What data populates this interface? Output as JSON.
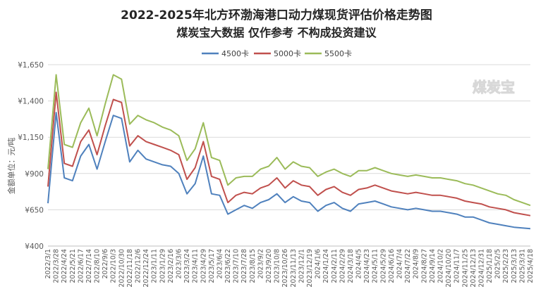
{
  "chart_data": {
    "type": "line",
    "title": "2022-2025年北方环渤海港口动力煤现货评估价格走势图",
    "subtitle": "煤炭宝大数据 仅作参考 不构成投资建议",
    "ylabel": "金额单位：元/吨",
    "ylim": [
      400,
      1650
    ],
    "yticks": [
      "¥400",
      "¥650",
      "¥900",
      "¥1,150",
      "¥1,400",
      "¥1,650"
    ],
    "ytick_values": [
      400,
      650,
      900,
      1150,
      1400,
      1650
    ],
    "grid": true,
    "legend_position": "top",
    "watermark": "煤炭宝",
    "x": [
      "2022/3/1",
      "2022/3/28",
      "2022/4/24",
      "2022/5/21",
      "2022/6/17",
      "2022/7/14",
      "2022/8/10",
      "2022/9/6",
      "2022/10/3",
      "2022/10/30",
      "2022/11/18",
      "2022/12/6",
      "2022/12/24",
      "2023/1/11",
      "2023/1/29",
      "2023/2/16",
      "2023/3/6",
      "2023/3/24",
      "2023/4/11",
      "2023/4/29",
      "2023/5/17",
      "2023/6/4",
      "2023/6/22",
      "2023/7/10",
      "2023/7/28",
      "2023/8/15",
      "2023/9/2",
      "2023/9/20",
      "2023/10/8",
      "2023/10/26",
      "2023/11/13",
      "2023/12/1",
      "2023/12/19",
      "2024/1/6",
      "2024/1/24",
      "2024/2/11",
      "2024/2/29",
      "2024/3/18",
      "2024/4/5",
      "2024/4/23",
      "2024/5/11",
      "2024/5/29",
      "2024/6/16",
      "2024/7/4",
      "2024/7/22",
      "2024/8/9",
      "2024/8/27",
      "2024/9/14",
      "2024/10/2",
      "2024/10/20",
      "2024/11/7",
      "2024/11/25",
      "2024/12/13",
      "2024/12/31",
      "2025/1/18",
      "2025/2/5",
      "2025/2/23",
      "2025/3/13",
      "2025/3/31",
      "2025/4/18"
    ],
    "xticks": [
      "2022/3/1",
      "2022/3/28",
      "2022/4/24",
      "2022/5/21",
      "2022/6/17",
      "2022/7/14",
      "2022/8/10",
      "2022/9/6",
      "2022/10/3",
      "2022/10/30",
      "2022/11/18",
      "2022/12/6",
      "2022/12/24",
      "2023/1/11",
      "2023/1/29",
      "2023/2/16",
      "2023/3/6",
      "2023/3/24",
      "2023/4/11",
      "2023/4/29",
      "2023/5/17",
      "2023/6/4",
      "2023/6/22",
      "2023/7/10",
      "2023/7/28",
      "2023/8/15",
      "2023/9/2",
      "2023/9/20",
      "2023/10/8",
      "2023/10/26",
      "2023/11/13",
      "2023/12/1",
      "2023/12/19",
      "2024/1/6",
      "2024/1/24",
      "2024/2/11",
      "2024/2/29",
      "2024/3/18",
      "2024/4/5",
      "2024/4/23",
      "2024/5/11",
      "2024/5/29",
      "2024/6/16",
      "2024/7/4",
      "2024/7/22",
      "2024/8/9",
      "2024/8/27",
      "2024/9/14",
      "2024/10/2",
      "2024/10/20",
      "2024/11/7",
      "2024/11/25",
      "2024/12/13",
      "2024/12/31",
      "2025/1/18",
      "2025/2/5",
      "2025/2/23",
      "2025/3/13",
      "2025/3/31",
      "2025/4/18"
    ],
    "series": [
      {
        "name": "4500卡",
        "color": "#4f81bd",
        "values": [
          695,
          1320,
          870,
          850,
          1020,
          1100,
          930,
          1120,
          1300,
          1280,
          980,
          1060,
          1000,
          980,
          960,
          950,
          900,
          760,
          830,
          1020,
          760,
          750,
          620,
          650,
          680,
          660,
          700,
          720,
          760,
          700,
          740,
          710,
          700,
          640,
          680,
          700,
          660,
          640,
          690,
          700,
          710,
          690,
          670,
          660,
          650,
          660,
          650,
          640,
          640,
          630,
          620,
          600,
          600,
          580,
          560,
          550,
          540,
          530,
          525,
          520
        ]
      },
      {
        "name": "5000卡",
        "color": "#c0504d",
        "values": [
          810,
          1460,
          970,
          950,
          1120,
          1200,
          1030,
          1230,
          1410,
          1390,
          1090,
          1160,
          1120,
          1100,
          1080,
          1060,
          1030,
          860,
          940,
          1120,
          880,
          860,
          700,
          750,
          770,
          760,
          800,
          820,
          870,
          800,
          850,
          820,
          810,
          750,
          790,
          810,
          770,
          750,
          790,
          800,
          820,
          800,
          780,
          770,
          760,
          770,
          760,
          750,
          750,
          740,
          730,
          710,
          700,
          690,
          670,
          660,
          650,
          630,
          620,
          610
        ]
      },
      {
        "name": "5500卡",
        "color": "#9bbb59",
        "values": [
          930,
          1580,
          1100,
          1080,
          1250,
          1350,
          1160,
          1380,
          1580,
          1550,
          1240,
          1300,
          1270,
          1250,
          1220,
          1200,
          1160,
          990,
          1070,
          1250,
          1010,
          990,
          820,
          870,
          880,
          880,
          930,
          950,
          1010,
          930,
          980,
          950,
          940,
          880,
          910,
          930,
          900,
          880,
          920,
          920,
          940,
          920,
          900,
          890,
          880,
          890,
          880,
          870,
          870,
          860,
          850,
          830,
          820,
          800,
          780,
          760,
          750,
          720,
          700,
          680
        ]
      }
    ]
  }
}
